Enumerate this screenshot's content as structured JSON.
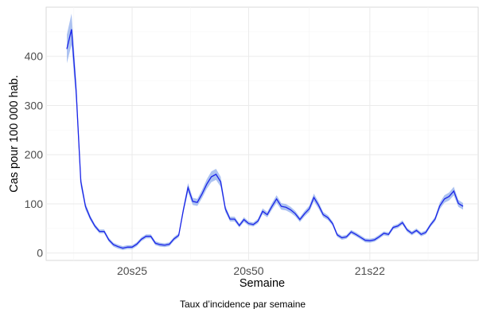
{
  "chart_data": {
    "type": "area",
    "title": "",
    "xlabel": "Semaine",
    "ylabel": "Cas pour 100 000 hab.",
    "caption": "Taux d’incidence par semaine",
    "x_tick_labels": [
      "20s25",
      "20s50",
      "21s22"
    ],
    "x_tick_index": [
      14,
      39,
      65
    ],
    "y_ticks": [
      0,
      100,
      200,
      300,
      400
    ],
    "ylim": [
      -15,
      500
    ],
    "grid": true,
    "legend": "none",
    "colors": {
      "line": "#1a24e8",
      "band": "#9db7ef"
    },
    "series": [
      {
        "values": [
          415,
          455,
          330,
          145,
          95,
          72,
          55,
          44,
          44,
          27,
          17,
          13,
          10,
          12,
          12,
          18,
          28,
          34,
          34,
          20,
          17,
          16,
          18,
          29,
          36,
          88,
          133,
          105,
          103,
          120,
          140,
          155,
          160,
          145,
          90,
          69,
          69,
          56,
          68,
          60,
          58,
          65,
          85,
          78,
          95,
          110,
          95,
          93,
          88,
          80,
          68,
          80,
          90,
          113,
          97,
          78,
          72,
          60,
          37,
          31,
          33,
          43,
          38,
          32,
          26,
          25,
          27,
          33,
          40,
          38,
          52,
          55,
          62,
          47,
          40,
          46,
          38,
          42,
          57,
          69,
          96,
          110,
          115,
          126,
          101,
          95
        ]
      }
    ]
  }
}
